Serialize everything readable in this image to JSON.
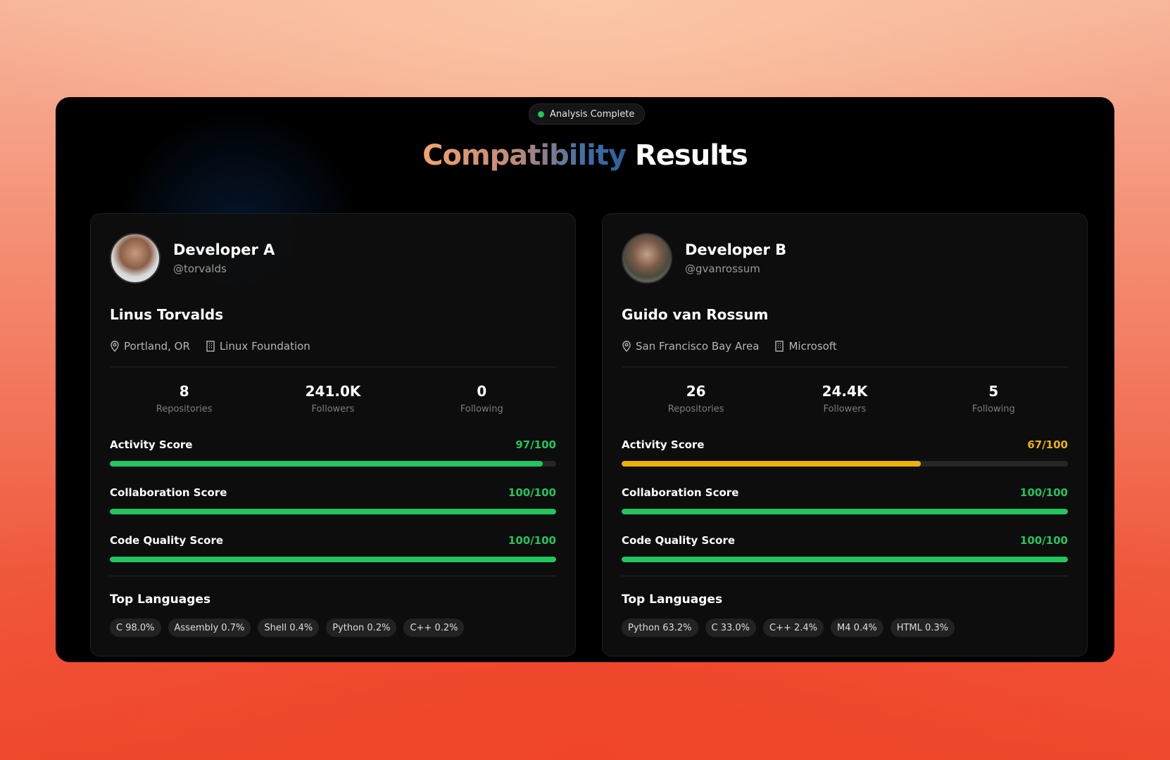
{
  "badge": "Analysis Complete",
  "title": {
    "highlight": "Compatibility",
    "rest": "Results"
  },
  "developers": [
    {
      "label": "Developer A",
      "handle": "@torvalds",
      "name": "Linus Torvalds",
      "location": "Portland, OR",
      "company": "Linux Foundation",
      "stats": [
        {
          "value": "8",
          "label": "Repositories"
        },
        {
          "value": "241.0K",
          "label": "Followers"
        },
        {
          "value": "0",
          "label": "Following"
        }
      ],
      "scores": [
        {
          "label": "Activity Score",
          "value": 97,
          "max": 100,
          "value_label": "97/100",
          "color": "#22c55e"
        },
        {
          "label": "Collaboration Score",
          "value": 100,
          "max": 100,
          "value_label": "100/100",
          "color": "#22c55e"
        },
        {
          "label": "Code Quality Score",
          "value": 100,
          "max": 100,
          "value_label": "100/100",
          "color": "#22c55e"
        }
      ],
      "languages_title": "Top Languages",
      "languages": [
        "C 98.0%",
        "Assembly 0.7%",
        "Shell 0.4%",
        "Python 0.2%",
        "C++ 0.2%"
      ]
    },
    {
      "label": "Developer B",
      "handle": "@gvanrossum",
      "name": "Guido van Rossum",
      "location": "San Francisco Bay Area",
      "company": "Microsoft",
      "stats": [
        {
          "value": "26",
          "label": "Repositories"
        },
        {
          "value": "24.4K",
          "label": "Followers"
        },
        {
          "value": "5",
          "label": "Following"
        }
      ],
      "scores": [
        {
          "label": "Activity Score",
          "value": 67,
          "max": 100,
          "value_label": "67/100",
          "color": "#eab308"
        },
        {
          "label": "Collaboration Score",
          "value": 100,
          "max": 100,
          "value_label": "100/100",
          "color": "#22c55e"
        },
        {
          "label": "Code Quality Score",
          "value": 100,
          "max": 100,
          "value_label": "100/100",
          "color": "#22c55e"
        }
      ],
      "languages_title": "Top Languages",
      "languages": [
        "Python 63.2%",
        "C 33.0%",
        "C++ 2.4%",
        "M4 0.4%",
        "HTML 0.3%"
      ]
    }
  ]
}
